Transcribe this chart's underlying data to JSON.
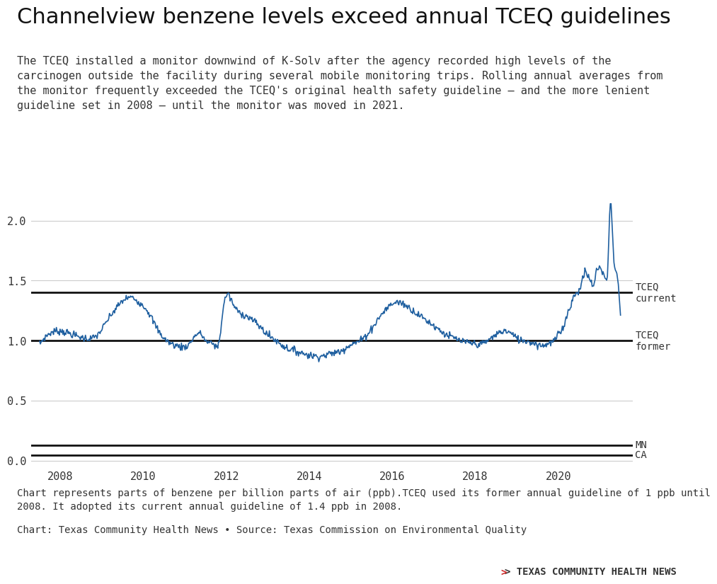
{
  "title": "Channelview benzene levels exceed annual TCEQ guidelines",
  "subtitle": "The TCEQ installed a monitor downwind of K-Solv after the agency recorded high levels of the\ncarcinogen outside the facility during several mobile monitoring trips. Rolling annual averages from\nthe monitor frequently exceeded the TCEQ's original health safety guideline — and the more lenient\nguideline set in 2008 — until the monitor was moved in 2021.",
  "footnote1": "Chart represents parts of benzene per billion parts of air (ppb).TCEQ used its former annual guideline of 1 ppb until\n2008. It adopted its current annual guideline of 1.4 ppb in 2008.",
  "footnote2": "Chart: Texas Community Health News • Source: Texas Commission on Environmental Quality",
  "branding": "> TEXAS COMMUNITY HEALTH NEWS",
  "tceq_current": 1.4,
  "tceq_former": 1.0,
  "mn_line": 0.13,
  "ca_line": 0.045,
  "line_color": "#2060a0",
  "guideline_color": "#111111",
  "background_color": "#ffffff",
  "text_color": "#333333",
  "grid_color": "#cccccc",
  "xlim_start": 2007.3,
  "xlim_end": 2021.8,
  "ylim_min": -0.05,
  "ylim_max": 2.25,
  "yticks": [
    0.0,
    0.5,
    1.0,
    1.5,
    2.0
  ],
  "xticks": [
    2008,
    2010,
    2012,
    2014,
    2016,
    2018,
    2020
  ]
}
